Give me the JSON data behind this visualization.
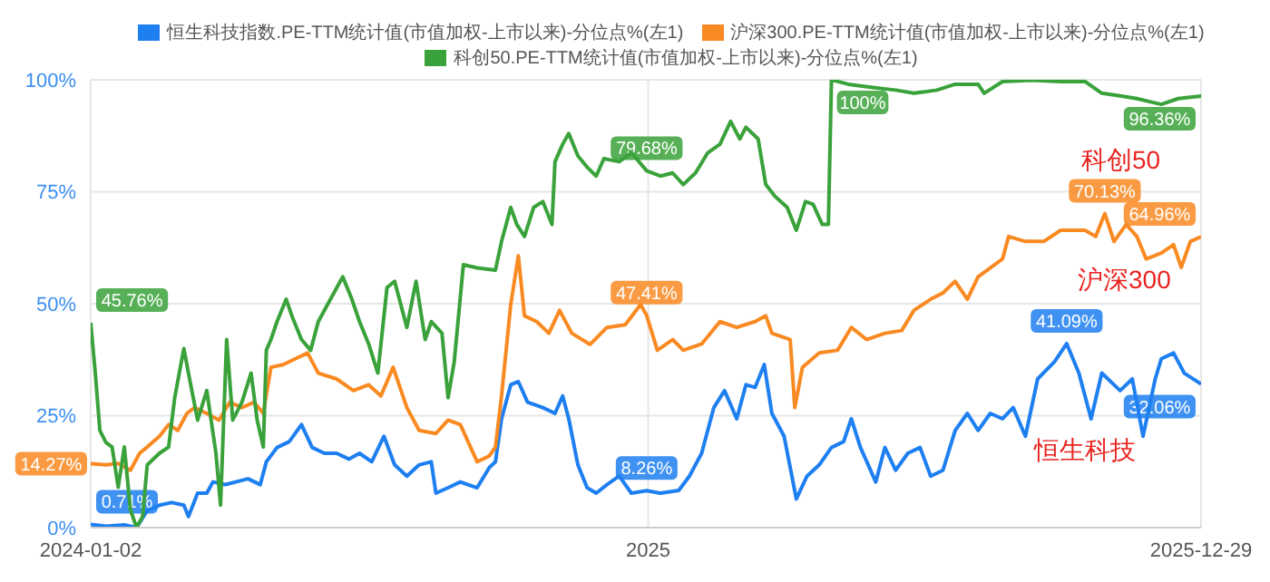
{
  "chart_data": {
    "type": "line",
    "ylim": [
      0,
      100
    ],
    "yticks": [
      {
        "value": 0,
        "label": "0%"
      },
      {
        "value": 25,
        "label": "25%"
      },
      {
        "value": 50,
        "label": "50%"
      },
      {
        "value": 75,
        "label": "75%"
      },
      {
        "value": 100,
        "label": "100%"
      }
    ],
    "xlim": [
      "2024-01-02",
      "2025-12-29"
    ],
    "xticks": [
      "2024-01-02",
      {
        "value": "2025-01-01",
        "label": "2025"
      },
      "2025-12-29"
    ],
    "grid": true,
    "legend": "top",
    "annotations": [
      "科创50",
      "沪深300",
      "恒生科技"
    ],
    "series": [
      {
        "name": "恒生科技指数.PE-TTM统计值(市值加权-上市以来)-分位点%(左1)",
        "color": "#1e7ff0",
        "x": [
          "2024-01-02",
          "2024-01-12",
          "2024-01-24",
          "2024-02-01",
          "2024-02-08",
          "2024-02-16",
          "2024-02-24",
          "2024-03-03",
          "2024-03-06",
          "2024-03-12",
          "2024-03-18",
          "2024-03-22",
          "2024-03-30",
          "2024-04-06",
          "2024-04-14",
          "2024-04-22",
          "2024-04-26",
          "2024-05-03",
          "2024-05-11",
          "2024-05-19",
          "2024-05-26",
          "2024-06-03",
          "2024-06-11",
          "2024-06-19",
          "2024-06-26",
          "2024-07-04",
          "2024-07-12",
          "2024-07-19",
          "2024-07-27",
          "2024-08-04",
          "2024-08-12",
          "2024-08-15",
          "2024-08-23",
          "2024-08-31",
          "2024-09-11",
          "2024-09-19",
          "2024-09-23",
          "2024-09-27",
          "2024-10-03",
          "2024-10-08",
          "2024-10-14",
          "2024-10-24",
          "2024-11-01",
          "2024-11-06",
          "2024-11-10",
          "2024-11-16",
          "2024-11-22",
          "2024-11-28",
          "2024-12-05",
          "2024-12-13",
          "2024-12-21",
          "2024-12-31",
          "2025-01-09",
          "2025-01-21",
          "2025-01-28",
          "2025-02-05",
          "2025-02-13",
          "2025-02-20",
          "2025-02-28",
          "2025-03-06",
          "2025-03-12",
          "2025-03-18",
          "2025-03-23",
          "2025-03-31",
          "2025-04-08",
          "2025-04-15",
          "2025-04-23",
          "2025-05-01",
          "2025-05-09",
          "2025-05-14",
          "2025-05-20",
          "2025-05-30",
          "2025-06-05",
          "2025-06-12",
          "2025-06-20",
          "2025-06-28",
          "2025-07-05",
          "2025-07-13",
          "2025-07-21",
          "2025-07-29",
          "2025-08-05",
          "2025-08-13",
          "2025-08-21",
          "2025-08-28",
          "2025-09-05",
          "2025-09-13",
          "2025-09-24",
          "2025-10-02",
          "2025-10-10",
          "2025-10-18",
          "2025-10-25",
          "2025-11-06",
          "2025-11-14",
          "2025-11-21",
          "2025-11-29",
          "2025-12-03",
          "2025-12-11",
          "2025-12-18",
          "2025-12-29"
        ],
        "values": [
          0.71,
          0.3,
          0.6,
          0,
          3.8,
          5,
          5.6,
          5,
          2.5,
          7.7,
          7.7,
          10.2,
          9.6,
          10.2,
          10.9,
          9.6,
          14.7,
          17.9,
          19.2,
          23,
          17.9,
          16.6,
          16.6,
          15.3,
          16.6,
          14.7,
          20.4,
          14,
          11.5,
          14,
          14.7,
          7.7,
          8.9,
          10.2,
          8.9,
          13.4,
          14.7,
          24.3,
          31.9,
          32.6,
          28,
          26.8,
          25.5,
          29.4,
          24.3,
          14,
          8.9,
          7.7,
          9.6,
          11.5,
          7.7,
          8.26,
          7.7,
          8.3,
          11.5,
          16.6,
          26.8,
          30.6,
          24.3,
          31.9,
          31.3,
          36.4,
          25.5,
          20.4,
          6.4,
          11.5,
          14,
          17.9,
          19.2,
          24.3,
          17.9,
          10.2,
          17.9,
          12.8,
          16.6,
          17.9,
          11.5,
          12.8,
          21.7,
          25.5,
          21.7,
          25.5,
          24.3,
          26.8,
          20.4,
          33.2,
          37,
          41.09,
          34.5,
          24.3,
          34.5,
          30.6,
          33.2,
          20.4,
          33.2,
          37.7,
          39,
          34.5,
          32.06
        ],
        "value_labels": [
          "0.71%",
          null,
          null,
          null,
          null,
          null,
          null,
          null,
          null,
          null,
          null,
          null,
          null,
          null,
          null,
          null,
          null,
          null,
          null,
          null,
          null,
          null,
          null,
          null,
          null,
          null,
          null,
          null,
          null,
          null,
          null,
          null,
          null,
          null,
          null,
          null,
          null,
          null,
          null,
          null,
          null,
          null,
          null,
          null,
          null,
          null,
          null,
          null,
          null,
          null,
          null,
          "8.26%",
          null,
          null,
          null,
          null,
          null,
          null,
          null,
          null,
          null,
          null,
          null,
          null,
          null,
          null,
          null,
          null,
          null,
          null,
          null,
          null,
          null,
          null,
          null,
          null,
          null,
          null,
          null,
          null,
          null,
          null,
          null,
          null,
          null,
          null,
          null,
          "41.09%",
          null,
          null,
          null,
          null,
          null,
          null,
          null,
          null,
          null,
          null,
          "32.06%"
        ]
      },
      {
        "name": "沪深300.PE-TTM统计值(市值加权-上市以来)-分位点%(左1)",
        "color": "#f98a22",
        "x": [
          "2024-01-02",
          "2024-01-12",
          "2024-01-20",
          "2024-01-28",
          "2024-02-03",
          "2024-02-08",
          "2024-02-16",
          "2024-02-22",
          "2024-02-28",
          "2024-03-05",
          "2024-03-10",
          "2024-03-18",
          "2024-03-26",
          "2024-04-02",
          "2024-04-10",
          "2024-04-18",
          "2024-04-24",
          "2024-04-29",
          "2024-05-07",
          "2024-05-15",
          "2024-05-23",
          "2024-05-30",
          "2024-06-11",
          "2024-06-22",
          "2024-07-02",
          "2024-07-10",
          "2024-07-18",
          "2024-07-27",
          "2024-08-04",
          "2024-08-15",
          "2024-08-23",
          "2024-08-31",
          "2024-09-11",
          "2024-09-19",
          "2024-09-23",
          "2024-09-27",
          "2024-10-03",
          "2024-10-08",
          "2024-10-12",
          "2024-10-20",
          "2024-10-28",
          "2024-11-04",
          "2024-11-12",
          "2024-11-24",
          "2024-12-05",
          "2024-12-17",
          "2024-12-27",
          "2024-12-31",
          "2025-01-07",
          "2025-01-17",
          "2025-01-24",
          "2025-02-05",
          "2025-02-17",
          "2025-02-28",
          "2025-03-12",
          "2025-03-19",
          "2025-03-23",
          "2025-04-04",
          "2025-04-07",
          "2025-04-12",
          "2025-04-23",
          "2025-05-05",
          "2025-05-14",
          "2025-05-24",
          "2025-06-05",
          "2025-06-16",
          "2025-06-24",
          "2025-07-05",
          "2025-07-13",
          "2025-07-21",
          "2025-07-29",
          "2025-08-05",
          "2025-08-21",
          "2025-08-25",
          "2025-09-05",
          "2025-09-17",
          "2025-09-28",
          "2025-10-14",
          "2025-10-21",
          "2025-10-27",
          "2025-11-02",
          "2025-11-10",
          "2025-11-17",
          "2025-11-23",
          "2025-12-03",
          "2025-12-11",
          "2025-12-16",
          "2025-12-22",
          "2025-12-29"
        ],
        "values": [
          14.27,
          14,
          14.3,
          12.8,
          16.6,
          18,
          20.4,
          23,
          21.7,
          25.5,
          26.8,
          25.5,
          24,
          28,
          26.8,
          28,
          25.5,
          35.8,
          36.4,
          37.7,
          39,
          34.5,
          33.2,
          30.6,
          31.9,
          29.4,
          35.8,
          26.8,
          21.7,
          21,
          24,
          23,
          14.7,
          16,
          18,
          29.4,
          49.8,
          60.7,
          47.3,
          46,
          43.4,
          48.5,
          43.4,
          40.9,
          44.7,
          45.3,
          49.8,
          47.41,
          39.6,
          42,
          39.6,
          41,
          46,
          44.7,
          46,
          47.3,
          43.4,
          42,
          26.8,
          35.8,
          39,
          39.6,
          44.7,
          42,
          43.4,
          44,
          48.5,
          51,
          52.4,
          55,
          51,
          56,
          60,
          65,
          63.9,
          63.9,
          66.4,
          66.4,
          65,
          70.13,
          63.9,
          67.7,
          65,
          60,
          61.3,
          63.2,
          58.1,
          63.9,
          64.96
        ],
        "value_labels": [
          "14.27%",
          null,
          null,
          null,
          null,
          null,
          null,
          null,
          null,
          null,
          null,
          null,
          null,
          null,
          null,
          null,
          null,
          null,
          null,
          null,
          null,
          null,
          null,
          null,
          null,
          null,
          null,
          null,
          null,
          null,
          null,
          null,
          null,
          null,
          null,
          null,
          null,
          null,
          null,
          null,
          null,
          null,
          null,
          null,
          null,
          null,
          null,
          "47.41%",
          null,
          null,
          null,
          null,
          null,
          null,
          null,
          null,
          null,
          null,
          null,
          null,
          null,
          null,
          null,
          null,
          null,
          null,
          null,
          null,
          null,
          null,
          null,
          null,
          null,
          null,
          null,
          null,
          null,
          null,
          null,
          "70.13%",
          null,
          null,
          null,
          null,
          null,
          null,
          null,
          null,
          "64.96%"
        ]
      },
      {
        "name": "科创50.PE-TTM统计值(市值加权-上市以来)-分位点%(左1)",
        "color": "#3aa23a",
        "x": [
          "2024-01-02",
          "2024-01-05",
          "2024-01-08",
          "2024-01-12",
          "2024-01-16",
          "2024-01-20",
          "2024-01-24",
          "2024-01-28",
          "2024-02-01",
          "2024-02-05",
          "2024-02-08",
          "2024-02-16",
          "2024-02-22",
          "2024-02-26",
          "2024-03-03",
          "2024-03-06",
          "2024-03-12",
          "2024-03-18",
          "2024-03-24",
          "2024-03-27",
          "2024-03-31",
          "2024-04-04",
          "2024-04-10",
          "2024-04-16",
          "2024-04-20",
          "2024-04-24",
          "2024-04-26",
          "2024-04-29",
          "2024-05-03",
          "2024-05-09",
          "2024-05-13",
          "2024-05-19",
          "2024-05-25",
          "2024-05-30",
          "2024-06-07",
          "2024-06-15",
          "2024-06-21",
          "2024-06-26",
          "2024-07-02",
          "2024-07-08",
          "2024-07-14",
          "2024-07-19",
          "2024-07-27",
          "2024-08-02",
          "2024-08-08",
          "2024-08-12",
          "2024-08-19",
          "2024-08-23",
          "2024-08-27",
          "2024-09-02",
          "2024-09-11",
          "2024-09-23",
          "2024-09-27",
          "2024-10-03",
          "2024-10-07",
          "2024-10-12",
          "2024-10-18",
          "2024-10-24",
          "2024-10-30",
          "2024-11-01",
          "2024-11-06",
          "2024-11-10",
          "2024-11-16",
          "2024-11-22",
          "2024-11-28",
          "2024-12-03",
          "2024-12-13",
          "2024-12-21",
          "2024-12-31",
          "2025-01-09",
          "2025-01-17",
          "2025-01-24",
          "2025-02-01",
          "2025-02-09",
          "2025-02-17",
          "2025-02-24",
          "2025-03-02",
          "2025-03-06",
          "2025-03-14",
          "2025-03-19",
          "2025-03-25",
          "2025-04-02",
          "2025-04-08",
          "2025-04-14",
          "2025-04-19",
          "2025-04-25",
          "2025-04-29",
          "2025-05-01",
          "2025-05-12",
          "2025-05-28",
          "2025-06-12",
          "2025-06-24",
          "2025-07-09",
          "2025-07-21",
          "2025-08-05",
          "2025-08-09",
          "2025-08-21",
          "2025-09-09",
          "2025-09-28",
          "2025-10-14",
          "2025-10-25",
          "2025-11-06",
          "2025-11-17",
          "2025-12-03",
          "2025-12-14",
          "2025-12-29"
        ],
        "values": [
          45.76,
          34.5,
          21.7,
          19,
          18,
          9,
          18,
          4,
          0,
          2.5,
          14,
          16.6,
          18,
          29,
          40,
          34.5,
          24,
          30.6,
          16.6,
          5,
          42,
          24,
          28,
          34.5,
          24,
          18,
          39.6,
          42,
          46,
          51,
          47,
          42,
          39.6,
          46,
          51,
          56,
          51,
          46,
          41,
          34.5,
          53.6,
          55,
          44.7,
          55,
          42,
          46,
          43.4,
          29,
          37,
          58.7,
          58,
          57.5,
          63.9,
          71.5,
          67.7,
          65,
          71.5,
          72.8,
          67.7,
          81.7,
          85.6,
          88,
          83,
          80.5,
          78.5,
          82.4,
          81.7,
          83.7,
          79.68,
          78.5,
          79.2,
          76.6,
          79.2,
          83.7,
          85.6,
          90.7,
          86.8,
          89.4,
          86.8,
          76.6,
          74,
          71.5,
          66.4,
          72.8,
          72.2,
          67.7,
          67.7,
          100,
          99,
          98.3,
          97.7,
          97,
          97.7,
          99,
          99,
          97,
          99.6,
          99.9,
          99.6,
          99.6,
          97,
          96.4,
          95.8,
          94.5,
          95.8,
          96.36
        ],
        "value_labels": [
          "45.76%",
          null,
          null,
          null,
          null,
          null,
          null,
          null,
          null,
          null,
          null,
          null,
          null,
          null,
          null,
          null,
          null,
          null,
          null,
          null,
          null,
          null,
          null,
          null,
          null,
          null,
          null,
          null,
          null,
          null,
          null,
          null,
          null,
          null,
          null,
          null,
          null,
          null,
          null,
          null,
          null,
          null,
          null,
          null,
          null,
          null,
          null,
          null,
          null,
          null,
          null,
          null,
          null,
          null,
          null,
          null,
          null,
          null,
          null,
          null,
          null,
          null,
          null,
          null,
          null,
          null,
          null,
          null,
          "79.68%",
          null,
          null,
          null,
          null,
          null,
          null,
          null,
          null,
          null,
          null,
          null,
          null,
          null,
          null,
          null,
          null,
          null,
          null,
          "100%",
          null,
          null,
          null,
          null,
          null,
          null,
          null,
          null,
          null,
          null,
          null,
          null,
          null,
          null,
          null,
          null,
          null,
          "96.36%"
        ]
      }
    ]
  }
}
